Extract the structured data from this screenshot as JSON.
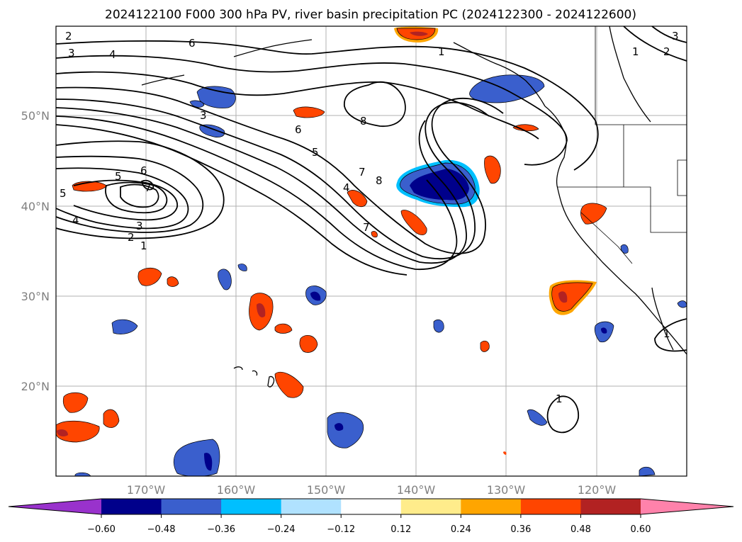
{
  "title": "2024122100 F000 300 hPa PV, river basin precipitation PC (2024122300 - 2024122600)",
  "lat_labels": [
    "50°N",
    "40°N",
    "30°N",
    "20°N"
  ],
  "lon_labels": [
    "170°W",
    "160°W",
    "150°W",
    "140°W",
    "130°W",
    "120°W"
  ],
  "colorbar": {
    "ticks": [
      "−0.60",
      "−0.48",
      "−0.36",
      "−0.24",
      "−0.12",
      "0.12",
      "0.24",
      "0.36",
      "0.48",
      "0.60"
    ],
    "colors": [
      "#9932CC",
      "#00008B",
      "#3A5FCD",
      "#00BFFF",
      "#B0E2FF",
      "#FFFFFF",
      "#FFEC8B",
      "#FFA500",
      "#FF4500",
      "#B22222",
      "#FF82AB"
    ]
  },
  "contour_labels": [
    "2",
    "3",
    "4",
    "6",
    "4",
    "1",
    "2",
    "3",
    "1",
    "2",
    "3",
    "8",
    "6",
    "5",
    "7",
    "8",
    "4",
    "7",
    "5",
    "6",
    "7",
    "5",
    "4",
    "3",
    "2",
    "1",
    "1",
    "1"
  ],
  "colors": {
    "neg_fill": "#3A5FCD",
    "neg_core": "#00008B",
    "neg_halo": "#00BFFF",
    "pos_fill": "#FF4500",
    "pos_core": "#B22222",
    "pos_halo": "#FFA500"
  }
}
